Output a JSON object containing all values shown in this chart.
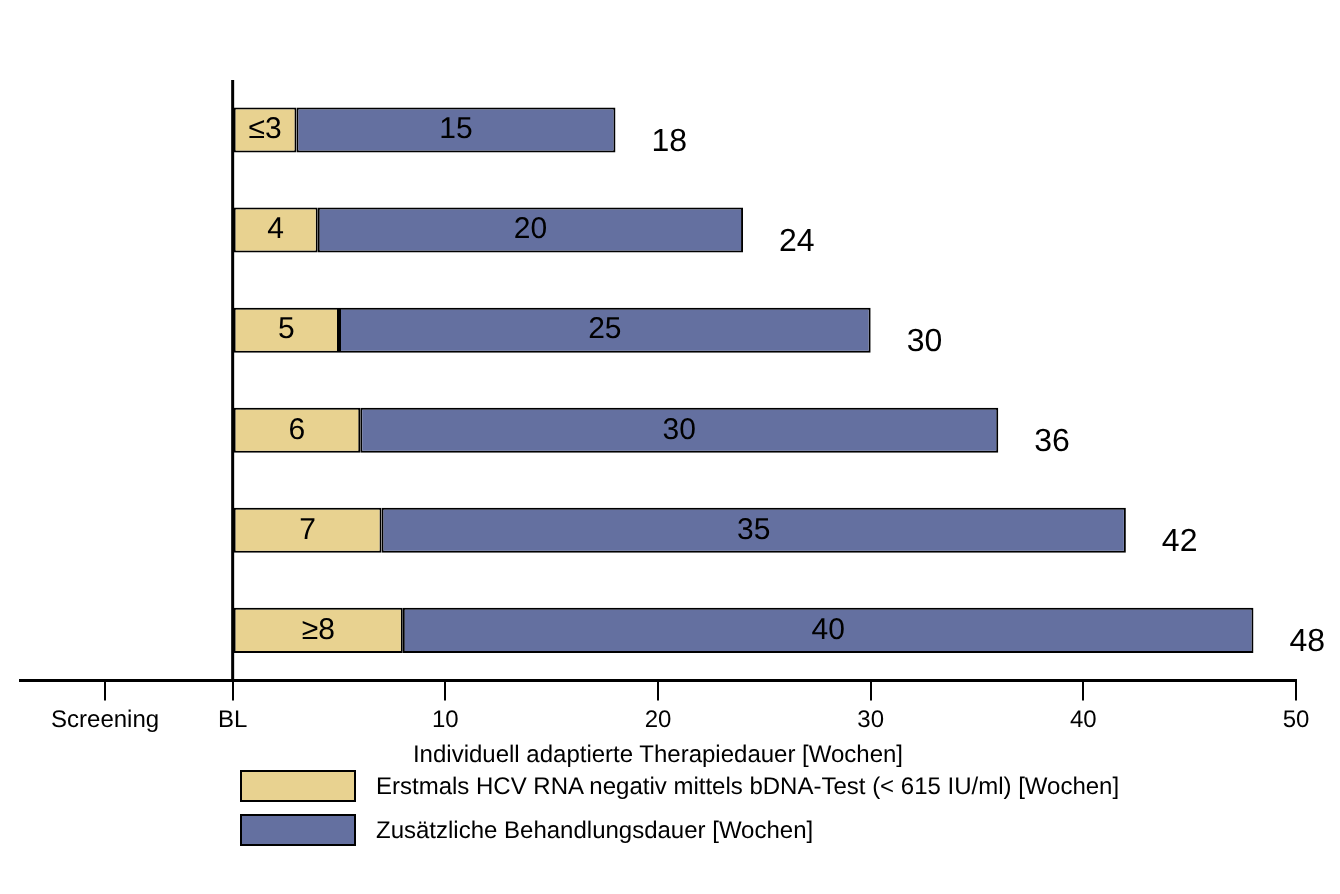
{
  "chart_data": {
    "type": "bar",
    "orientation": "horizontal",
    "stacked": true,
    "categories": [
      null,
      null,
      null,
      null,
      null,
      null
    ],
    "xlabel": "Individuell adaptierte Therapiedauer [Wochen]",
    "xlim": [
      -10,
      50
    ],
    "xticks": [
      {
        "value": -6,
        "label": "Screening"
      },
      {
        "value": 0,
        "label": "BL"
      },
      10,
      20,
      30,
      40,
      50
    ],
    "legend": "bottom",
    "grid": false,
    "ref_lines": [
      {
        "axis": "x",
        "value": 0,
        "color": "#000000"
      }
    ],
    "series": [
      {
        "name": "Erstmals HCV RNA negativ mittels bDNA-Test (< 615 IU/ml) [Wochen]",
        "color": "#e8d290",
        "values": [
          3,
          4,
          5,
          6,
          7,
          8
        ],
        "value_labels": [
          "≤3",
          "4",
          "5",
          "6",
          "7",
          "≥8"
        ]
      },
      {
        "name": "Zusätzliche Behandlungsdauer [Wochen]",
        "color": "#6470a0",
        "values": [
          15,
          20,
          25,
          30,
          35,
          40
        ],
        "value_labels": [
          "15",
          "20",
          "25",
          "30",
          "35",
          "40"
        ]
      }
    ],
    "totals": [
      "18",
      "24",
      "30",
      "36",
      "42",
      "48"
    ]
  }
}
